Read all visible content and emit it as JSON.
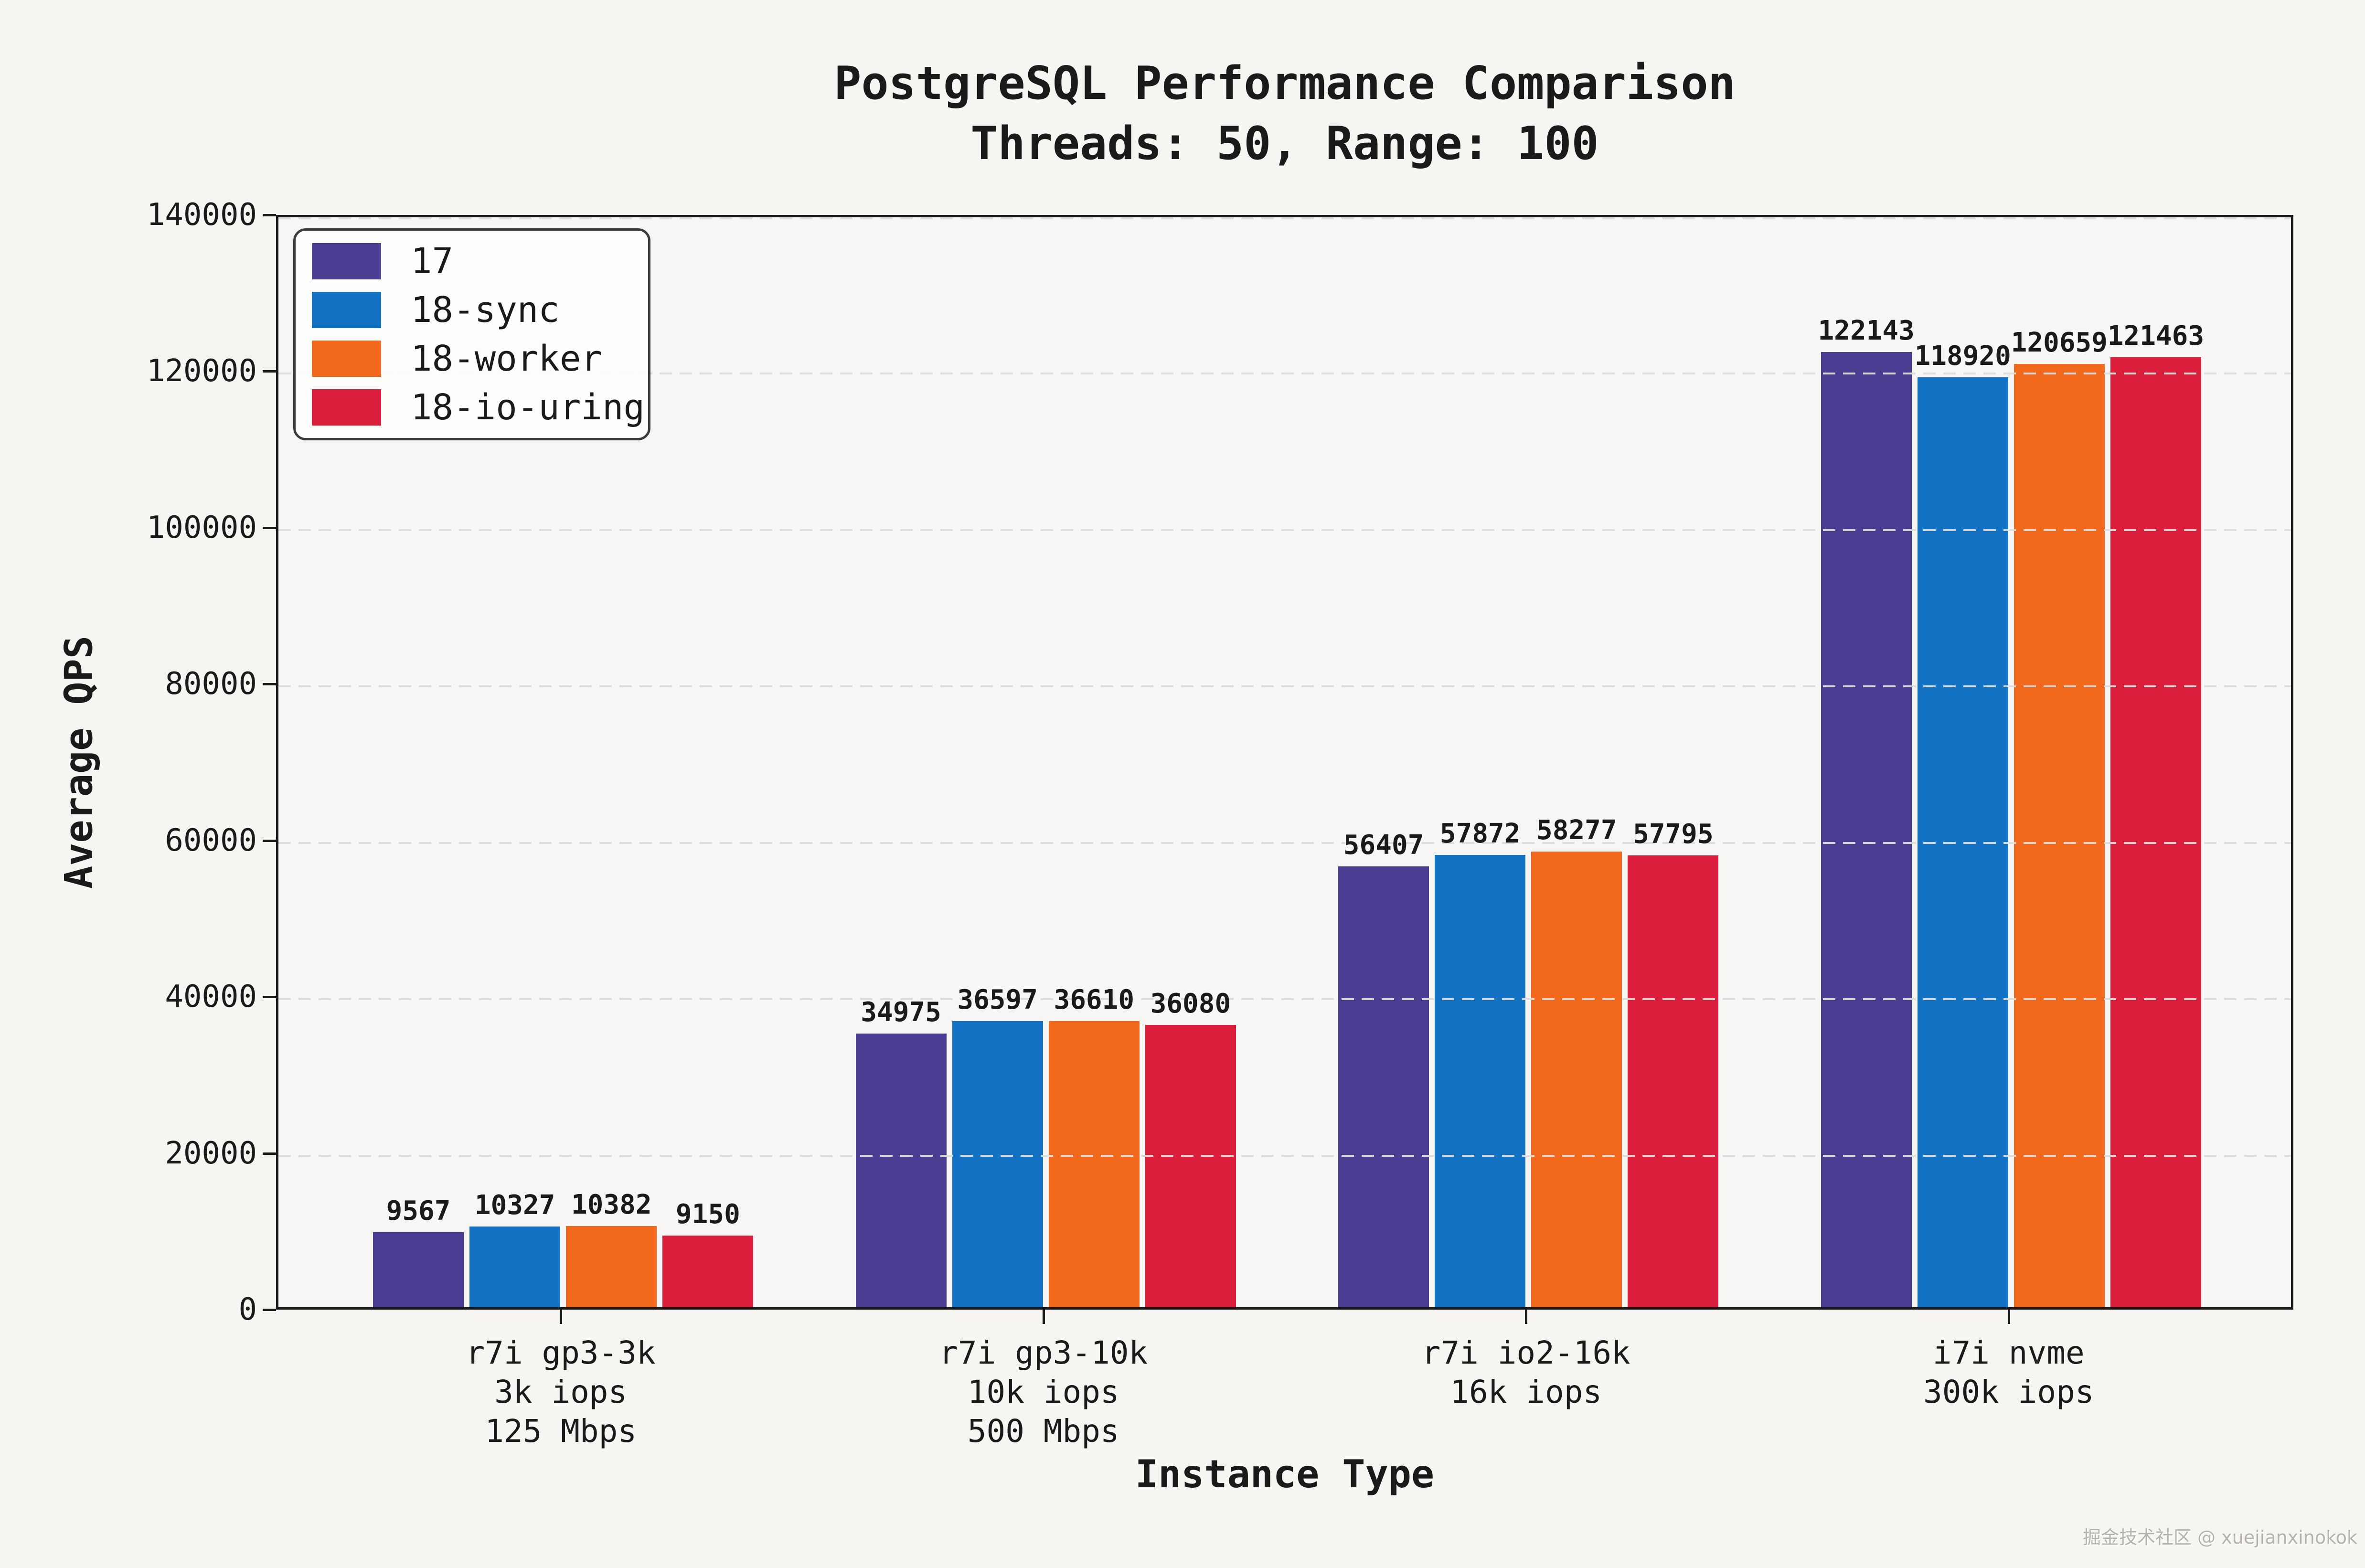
{
  "header": {
    "title": "PostgreSQL Performance Comparison",
    "subtitle": "Threads: 50, Range: 100"
  },
  "watermark": "掘金技术社区 @ xuejianxinokok",
  "chart_data": {
    "type": "bar",
    "title": "PostgreSQL Performance Comparison",
    "subtitle": "Threads: 50, Range: 100",
    "xlabel": "Instance Type",
    "ylabel": "Average QPS",
    "ylim": [
      0,
      140000
    ],
    "yticks": [
      0,
      20000,
      40000,
      60000,
      80000,
      100000,
      120000,
      140000
    ],
    "grid": "horizontal dashed lines at major y ticks, drawn over bars",
    "legend_position": "upper left",
    "legend_entries": [
      "17",
      "18-sync",
      "18-worker",
      "18-io-uring"
    ],
    "categories": [
      "r7i gp3-3k\n3k iops\n125 Mbps",
      "r7i gp3-10k\n10k iops\n500 Mbps",
      "r7i io2-16k\n16k iops",
      "i7i nvme\n300k iops"
    ],
    "series": [
      {
        "name": "17",
        "color": "#4a3d92",
        "values": [
          9567,
          34975,
          56407,
          122143
        ]
      },
      {
        "name": "18-sync",
        "color": "#1372c4",
        "values": [
          10327,
          36597,
          57872,
          118920
        ]
      },
      {
        "name": "18-worker",
        "color": "#f2691d",
        "values": [
          10382,
          36610,
          58277,
          120659
        ]
      },
      {
        "name": "18-io-uring",
        "color": "#da1e3c",
        "values": [
          9150,
          36080,
          57795,
          121463
        ]
      }
    ],
    "bar_value_labels_shown": true,
    "axis_color": "#1a1a1a",
    "background_color": "#f6f5f2"
  }
}
